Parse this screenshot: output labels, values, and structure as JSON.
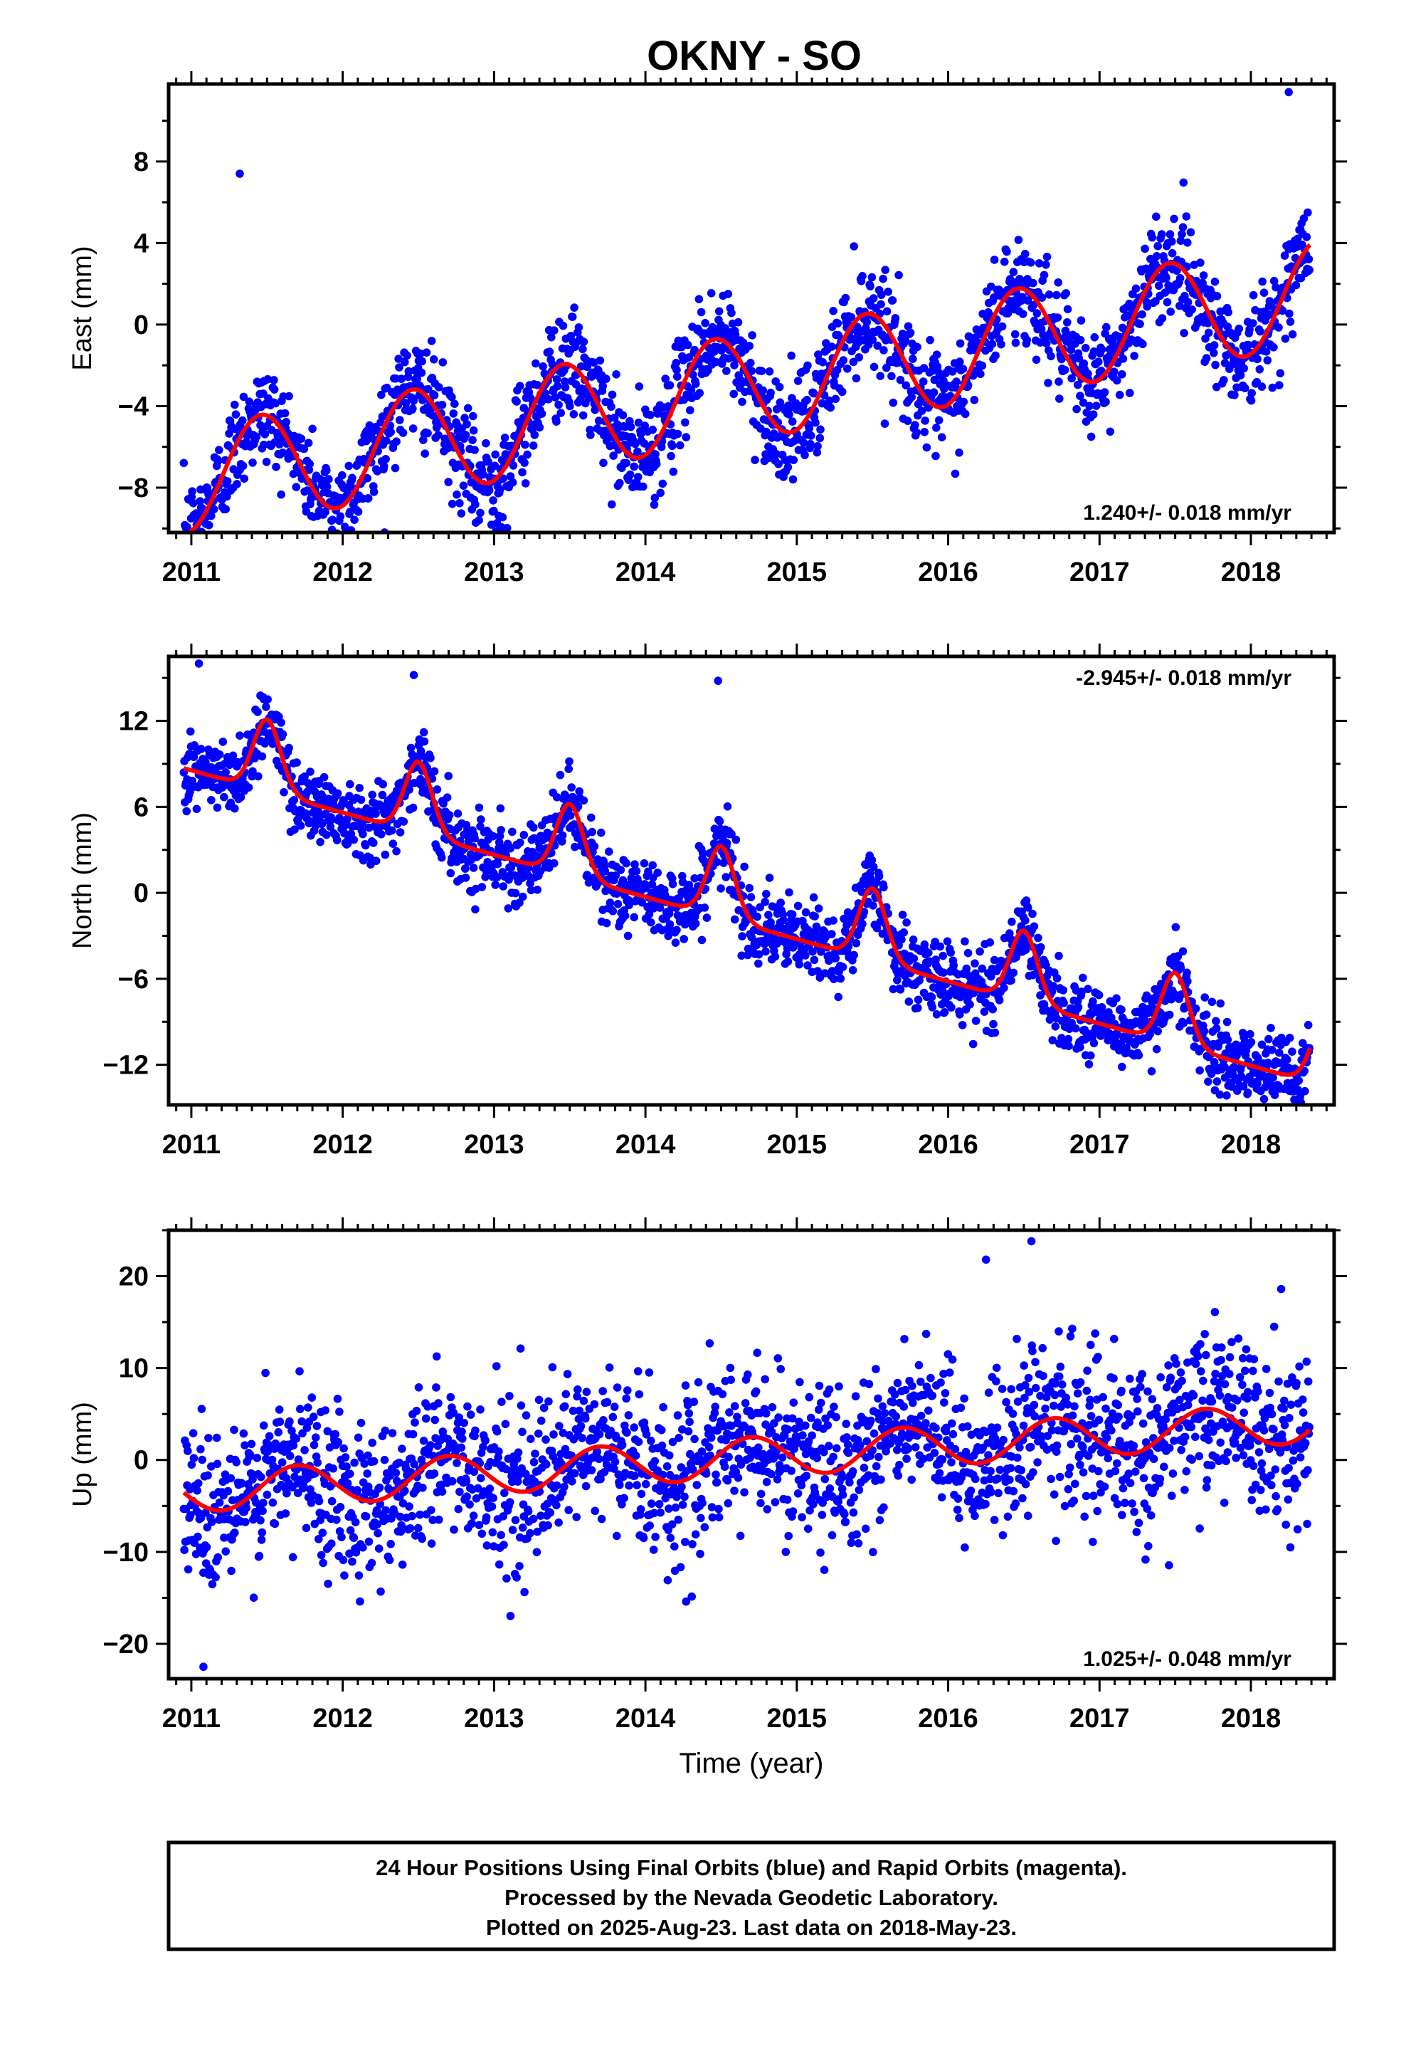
{
  "title": "OKNY - SO",
  "colors": {
    "points": "#0000ff",
    "fit": "#ff0000",
    "frame": "#000000"
  },
  "chart_data": [
    {
      "type": "scatter",
      "name_key": "east",
      "ylabel": "East (mm)",
      "xlabel": "",
      "xlim": [
        2010.85,
        2018.55
      ],
      "ylim": [
        -10.2,
        11.8
      ],
      "xticks": [
        2011,
        2012,
        2013,
        2014,
        2015,
        2016,
        2017,
        2018
      ],
      "yticks": [
        -8,
        -4,
        0,
        4,
        8
      ],
      "ytick_labels": [
        "−8",
        "−4",
        "0",
        "4",
        "8"
      ],
      "rate_label": "1.240+/- 0.018 mm/yr",
      "rate_position": "bottom-right",
      "time_range": [
        2010.95,
        2018.39
      ],
      "fit": {
        "intercept": -7.6,
        "slope": 1.24,
        "t0": 2011.0,
        "amplitude": 2.6,
        "phase_peak": 0.46
      },
      "scatter_sd": 1.25,
      "outliers": [
        {
          "x": 2011.32,
          "y": 7.4
        },
        {
          "x": 2018.25,
          "y": 11.4
        },
        {
          "x": 2012.9,
          "y": -9.6
        }
      ]
    },
    {
      "type": "scatter",
      "name_key": "north",
      "ylabel": "North (mm)",
      "xlabel": "",
      "xlim": [
        2010.85,
        2018.55
      ],
      "ylim": [
        -14.8,
        16.5
      ],
      "xticks": [
        2011,
        2012,
        2013,
        2014,
        2015,
        2016,
        2017,
        2018
      ],
      "yticks": [
        -12,
        -6,
        0,
        6,
        12
      ],
      "ytick_labels": [
        "−12",
        "−6",
        "0",
        "6",
        "12"
      ],
      "rate_label": "-2.945+/- 0.018 mm/yr",
      "rate_position": "top-right",
      "time_range": [
        2010.95,
        2018.39
      ],
      "fit": {
        "intercept": 9.8,
        "slope": -2.945,
        "t0": 2011.0,
        "spike_amp": 5.0,
        "spike_peak": 0.5,
        "spike_width": 0.09
      },
      "scatter_sd": 1.3,
      "outliers": [
        {
          "x": 2011.05,
          "y": 16.0
        },
        {
          "x": 2012.47,
          "y": 15.2
        },
        {
          "x": 2014.48,
          "y": 14.8
        }
      ]
    },
    {
      "type": "scatter",
      "name_key": "up",
      "ylabel": "Up (mm)",
      "xlabel": "Time (year)",
      "xlim": [
        2010.85,
        2018.55
      ],
      "ylim": [
        -23.8,
        25.0
      ],
      "xticks": [
        2011,
        2012,
        2013,
        2014,
        2015,
        2016,
        2017,
        2018
      ],
      "yticks": [
        -20,
        -10,
        0,
        10,
        20
      ],
      "ytick_labels": [
        "−20",
        "−10",
        "0",
        "10",
        "20"
      ],
      "rate_label": "1.025+/- 0.048 mm/yr",
      "rate_position": "bottom-right",
      "time_range": [
        2010.95,
        2018.39
      ],
      "fit": {
        "intercept": -3.5,
        "slope": 1.025,
        "t0": 2011.0,
        "amplitude": 2.2,
        "phase_peak": 0.7
      },
      "scatter_sd": 4.3,
      "outliers": [
        {
          "x": 2016.55,
          "y": 23.8
        },
        {
          "x": 2016.25,
          "y": 21.8
        },
        {
          "x": 2011.08,
          "y": -22.5
        },
        {
          "x": 2018.2,
          "y": 18.6
        }
      ]
    }
  ],
  "footer": {
    "line1": "24 Hour Positions Using Final Orbits (blue) and Rapid Orbits (magenta).",
    "line2": "Processed by the Nevada Geodetic Laboratory.",
    "line3": "Plotted on 2025-Aug-23. Last data on 2018-May-23."
  }
}
